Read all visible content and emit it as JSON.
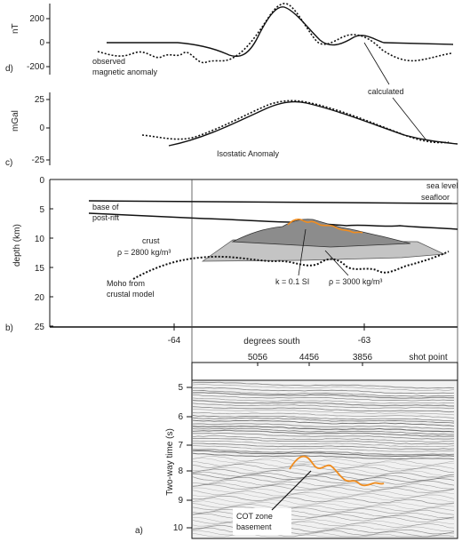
{
  "panels": {
    "d": {
      "letter": "d)",
      "unit": "nT",
      "ticks": [
        "200",
        "0",
        "-200"
      ],
      "label_observed": [
        "observed",
        "magnetic anomaly"
      ],
      "label_calculated": "calculated"
    },
    "c": {
      "letter": "c)",
      "unit": "mGal",
      "ticks": [
        "25",
        "0",
        "-25"
      ],
      "label": "Isostatic Anomaly"
    },
    "b": {
      "letter": "b)",
      "ylabel": "depth (km)",
      "yticks": [
        "0",
        "5",
        "10",
        "15",
        "20",
        "25"
      ],
      "labels": {
        "sea_level": "sea level",
        "seafloor": "seafloor",
        "base_post_rift": [
          "base of",
          "post-rift"
        ],
        "crust": [
          "crust",
          "ρ = 2800 kg/m³"
        ],
        "moho": [
          "Moho from",
          "crustal model"
        ],
        "susceptibility": "k = 0.1 SI",
        "density": "ρ = 3000 kg/m³"
      },
      "xticks": [
        "-64",
        "-63"
      ],
      "xlabel": "degrees south"
    },
    "a": {
      "letter": "a)",
      "ylabel": "Two-way time (s)",
      "yticks": [
        "5",
        "6",
        "7",
        "8",
        "9",
        "10"
      ],
      "shot_points": [
        "5056",
        "4456",
        "3856"
      ],
      "shot_label": "shot point",
      "annotation": [
        "COT zone",
        "basement"
      ]
    }
  },
  "colors": {
    "line": "#111111",
    "body_dark": "#8c8c8c",
    "body_light": "#c4c4c4",
    "highlight": "#f08c1e",
    "seismic_bg": "#f1f1f1",
    "seismic_reflector": "#555555"
  }
}
